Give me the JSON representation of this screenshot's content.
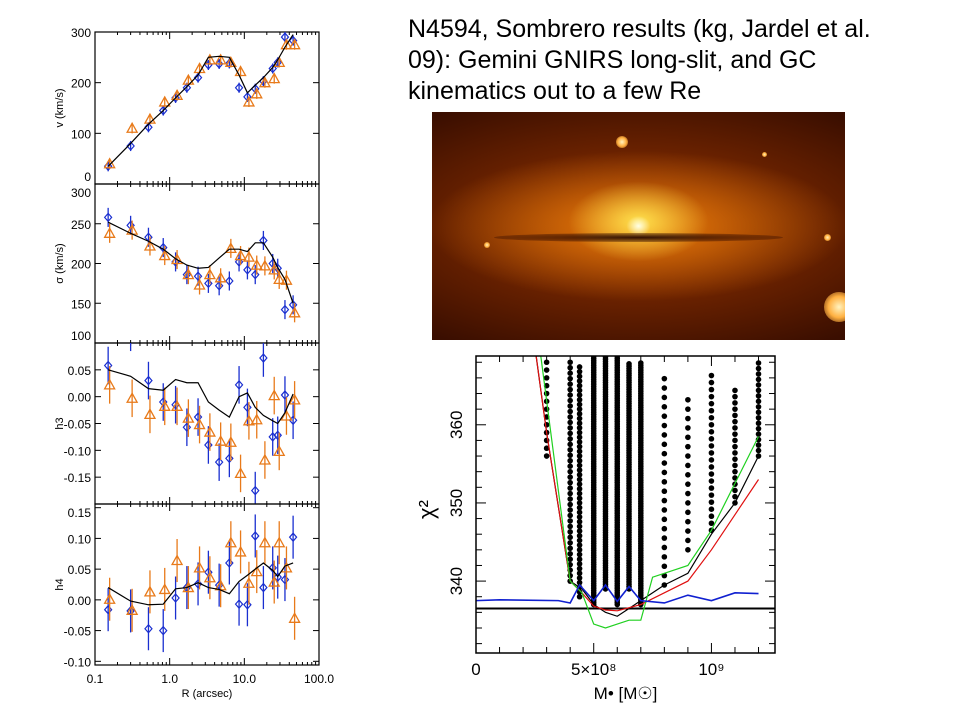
{
  "slide": {
    "title": "N4594, Sombrero results (kg, Jardel et al. 09): Gemini GNIRS long-slit, and GC kinematics out to a few Re"
  },
  "image": {
    "label": "Sombrero galaxy image"
  },
  "colors": {
    "kg": "#1a2fd0",
    "jardel": "#e87a1a",
    "model": "#000000",
    "red": "#e01010",
    "green": "#20d020",
    "blue": "#1020d0"
  },
  "chart_data": [
    {
      "type": "scatter",
      "title": "",
      "xlabel": "R (arcsec)",
      "xscale": "log",
      "xlim": [
        0.1,
        100
      ],
      "xticks": [
        "0.1",
        "1.0",
        "10.0",
        "100.0"
      ],
      "R": [
        0.15,
        0.3,
        0.52,
        0.82,
        1.2,
        1.7,
        2.4,
        3.3,
        4.6,
        6.3,
        8.5,
        11,
        14,
        18,
        24,
        28,
        35,
        45
      ],
      "panels": [
        {
          "ylabel": "v (km/s)",
          "ylim": [
            0,
            300
          ],
          "yticks": [
            0,
            100,
            200,
            300
          ],
          "ytick_labels": [
            "0",
            "100",
            "200",
            "300"
          ],
          "err": 10,
          "series": [
            {
              "name": "kg",
              "marker": "diamond",
              "values": [
                35,
                75,
                112,
                145,
                170,
                190,
                210,
                235,
                237,
                238,
                190,
                172,
                188,
                203,
                228,
                240,
                290,
                283
              ]
            },
            {
              "name": "jardel",
              "marker": "triangle",
              "values": [
                40,
                110,
                128,
                162,
                175,
                205,
                228,
                245,
                245,
                240,
                222,
                162,
                178,
                200,
                208,
                240,
                275,
                275
              ]
            },
            {
              "name": "model",
              "marker": "line",
              "values": [
                35,
                80,
                118,
                145,
                170,
                192,
                215,
                250,
                252,
                250,
                215,
                180,
                195,
                210,
                230,
                245,
                270,
                295
              ]
            }
          ]
        },
        {
          "ylabel": "σ (km/s)",
          "ylim": [
            100,
            300
          ],
          "yticks": [
            100,
            150,
            200,
            250,
            300
          ],
          "ytick_labels": [
            "100",
            "150",
            "200",
            "250",
            "300"
          ],
          "err": 12,
          "series": [
            {
              "name": "kg",
              "marker": "diamond",
              "values": [
                258,
                248,
                233,
                220,
                202,
                186,
                184,
                175,
                172,
                178,
                202,
                192,
                186,
                229,
                200,
                194,
                142,
                148
              ]
            },
            {
              "name": "jardel",
              "marker": "triangle",
              "values": [
                238,
                242,
                222,
                210,
                205,
                186,
                173,
                186,
                182,
                219,
                210,
                208,
                198,
                197,
                192,
                180,
                179,
                138
              ]
            },
            {
              "name": "model",
              "marker": "line",
              "values": [
                252,
                238,
                228,
                218,
                206,
                198,
                194,
                195,
                207,
                218,
                218,
                215,
                226,
                226,
                208,
                195,
                180,
                150
              ]
            }
          ]
        },
        {
          "ylabel": "h3",
          "ylim": [
            -0.2,
            0.1
          ],
          "yticks": [
            -0.15,
            -0.1,
            -0.05,
            0,
            0.05
          ],
          "ytick_labels": [
            "-0.15",
            "-0.10",
            "-0.05",
            "0.00",
            "0.05"
          ],
          "err": 0.035,
          "series": [
            {
              "name": "kg",
              "marker": "diamond",
              "values": [
                0.058,
                0.12,
                0.03,
                -0.01,
                -0.015,
                -0.057,
                -0.038,
                -0.09,
                -0.122,
                -0.115,
                0.022,
                -0.02,
                -0.175,
                0.072,
                -0.075,
                -0.072,
                0.003,
                -0.044
              ]
            },
            {
              "name": "jardel",
              "marker": "triangle",
              "values": [
                0.022,
                -0.003,
                -0.033,
                -0.018,
                -0.018,
                -0.04,
                -0.052,
                -0.066,
                -0.083,
                -0.085,
                -0.143,
                -0.045,
                -0.043,
                -0.118,
                0.002,
                -0.102,
                -0.036,
                -0.006
              ]
            },
            {
              "name": "model",
              "marker": "line",
              "values": [
                0.05,
                0.038,
                0.015,
                0.012,
                0.032,
                0.026,
                0.026,
                -0.01,
                -0.025,
                -0.038,
                0,
                0.007,
                -0.02,
                -0.035,
                -0.045,
                -0.05,
                -0.03,
                0.005
              ]
            }
          ]
        },
        {
          "ylabel": "h4",
          "ylim": [
            -0.106,
            0.156
          ],
          "yticks": [
            -0.1,
            -0.05,
            0,
            0.05,
            0.1,
            0.15
          ],
          "ytick_labels": [
            "-0.10",
            "-0.05",
            "0.00",
            "0.05",
            "0.10",
            "0.15"
          ],
          "err": 0.035,
          "series": [
            {
              "name": "kg",
              "marker": "diamond",
              "values": [
                -0.016,
                -0.018,
                -0.047,
                -0.05,
                0.003,
                0.02,
                0.026,
                0.045,
                0.024,
                0.06,
                -0.007,
                -0.008,
                0.104,
                0.02,
                0.052,
                0.037,
                0.033,
                0.102
              ]
            },
            {
              "name": "jardel",
              "marker": "triangle",
              "values": [
                0.001,
                -0.017,
                0.013,
                0.017,
                0.064,
                0.02,
                0.052,
                0.036,
                0.023,
                0.093,
                0.078,
                0.027,
                0.046,
                0.093,
                0.029,
                0.093,
                0.052,
                -0.03
              ]
            },
            {
              "name": "model",
              "marker": "line",
              "values": [
                0.02,
                -0.002,
                -0.008,
                -0.007,
                0.018,
                0.02,
                0.028,
                0.02,
                0.017,
                0.01,
                0.03,
                0.04,
                0.05,
                0.06,
                0.048,
                0.038,
                0.055,
                0.06
              ]
            }
          ]
        }
      ]
    },
    {
      "type": "line",
      "xlabel": "M• [M☉]",
      "ylabel": "χ²",
      "xlim": [
        0,
        1270000000.0
      ],
      "ylim": [
        330.8,
        368.8
      ],
      "xtick_labels": [
        {
          "v": 0,
          "t": "0"
        },
        {
          "v": 500000000.0,
          "t": "5×10⁸"
        },
        {
          "v": 1000000000.0,
          "t": "10⁹"
        }
      ],
      "ytick_labels": [
        {
          "v": 340,
          "t": "340"
        },
        {
          "v": 350,
          "t": "350"
        },
        {
          "v": 360,
          "t": "360"
        }
      ],
      "reference_line": 336.5,
      "dot_columns": [
        {
          "x": 300000000.0,
          "min": 356,
          "max": 368,
          "step": 1.0
        },
        {
          "x": 400000000.0,
          "min": 340,
          "max": 368,
          "step": 0.7
        },
        {
          "x": 440000000.0,
          "min": 338,
          "max": 368,
          "step": 0.6
        },
        {
          "x": 500000000.0,
          "min": 337,
          "max": 369,
          "step": 0.3
        },
        {
          "x": 550000000.0,
          "min": 339,
          "max": 369,
          "step": 0.3
        },
        {
          "x": 600000000.0,
          "min": 337,
          "max": 369,
          "step": 0.3
        },
        {
          "x": 650000000.0,
          "min": 339,
          "max": 368,
          "step": 0.3
        },
        {
          "x": 700000000.0,
          "min": 337,
          "max": 368,
          "step": 0.3
        },
        {
          "x": 800000000.0,
          "min": 339.5,
          "max": 366,
          "step": 1.2
        },
        {
          "x": 900000000.0,
          "min": 344,
          "max": 364,
          "step": 1.2
        },
        {
          "x": 1000000000.0,
          "min": 346.5,
          "max": 367,
          "step": 0.9
        },
        {
          "x": 1100000000.0,
          "min": 350,
          "max": 365,
          "step": 0.8
        },
        {
          "x": 1200000000.0,
          "min": 356,
          "max": 368,
          "step": 0.7
        }
      ],
      "series": [
        {
          "name": "black",
          "color": "#000000",
          "x": [
            250000000.0,
            300000000.0,
            400000000.0,
            450000000.0,
            500000000.0,
            550000000.0,
            600000000.0,
            650000000.0,
            700000000.0,
            800000000.0,
            900000000.0,
            1000000000.0,
            1100000000.0,
            1200000000.0
          ],
          "y": [
            370,
            359,
            340,
            339,
            337,
            336,
            335.5,
            336.5,
            337.5,
            339.5,
            341,
            346,
            350,
            356
          ]
        },
        {
          "name": "red",
          "color": "#e01010",
          "x": [
            250000000.0,
            300000000.0,
            400000000.0,
            450000000.0,
            500000000.0,
            550000000.0,
            600000000.0,
            700000000.0,
            800000000.0,
            900000000.0,
            1000000000.0,
            1100000000.0,
            1200000000.0
          ],
          "y": [
            370,
            359,
            340,
            338.5,
            336.8,
            336.3,
            336.2,
            337,
            338.5,
            340,
            344,
            348.5,
            353
          ]
        },
        {
          "name": "green",
          "color": "#20d020",
          "x": [
            270000000.0,
            400000000.0,
            450000000.0,
            500000000.0,
            550000000.0,
            600000000.0,
            650000000.0,
            700000000.0,
            750000000.0,
            800000000.0,
            900000000.0,
            1000000000.0,
            1200000000.0
          ],
          "y": [
            370,
            340,
            338.5,
            334.5,
            334,
            334.5,
            335,
            335,
            340.5,
            341,
            342,
            346.5,
            358.5
          ]
        },
        {
          "name": "blue",
          "color": "#1020d0",
          "x": [
            0,
            100000000.0,
            350000000.0,
            400000000.0,
            440000000.0,
            500000000.0,
            550000000.0,
            600000000.0,
            650000000.0,
            700000000.0,
            800000000.0,
            900000000.0,
            1000000000.0,
            1100000000.0,
            1200000000.0
          ],
          "y": [
            337.5,
            337.6,
            337.5,
            337.2,
            339.5,
            337.5,
            339.5,
            337.4,
            339.3,
            337.5,
            337.2,
            338.2,
            337.5,
            338.5,
            338.4
          ]
        }
      ]
    }
  ]
}
